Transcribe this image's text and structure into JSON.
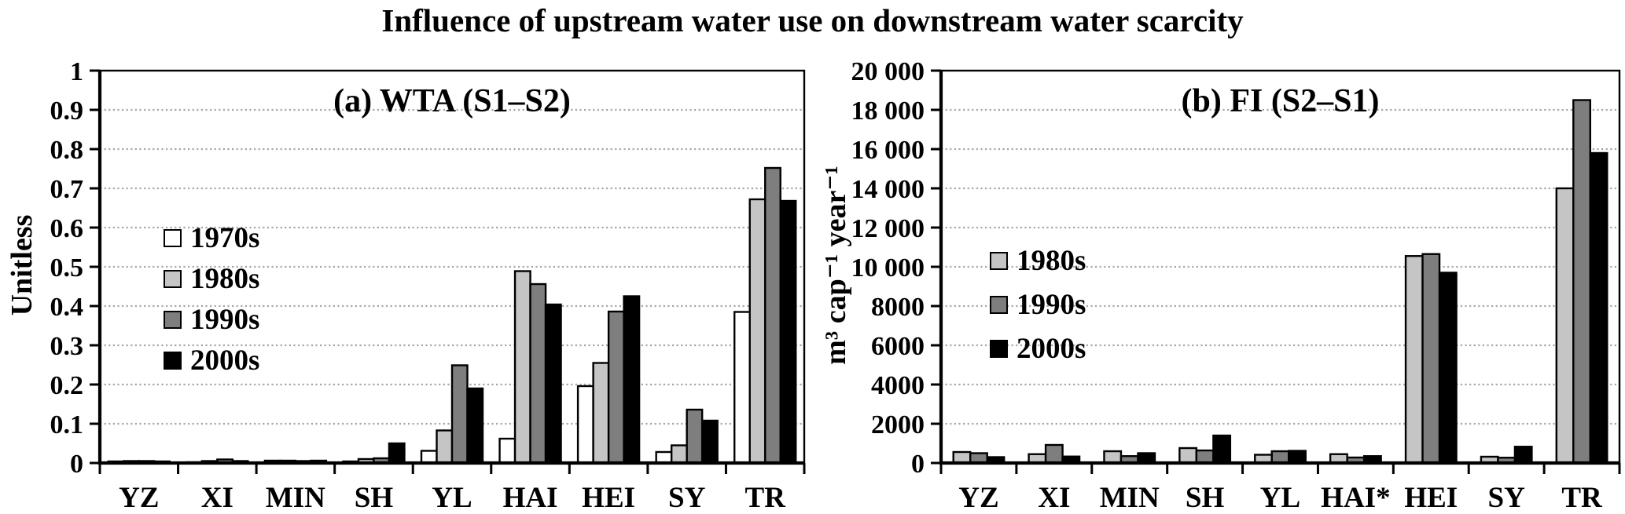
{
  "title": "Influence of upstream water use on downstream water scarcity",
  "chart_data": [
    {
      "type": "bar",
      "panel_label": "(a) WTA (S1–S2)",
      "ylabel": "Unitless",
      "xlabel": "",
      "ylim": [
        0,
        1
      ],
      "ytick_labels": [
        "0",
        "0.1",
        "0.2",
        "0.3",
        "0.4",
        "0.5",
        "0.6",
        "0.7",
        "0.8",
        "0.9",
        "1"
      ],
      "grid": "horizontal-dotted",
      "legend_position": "inside-upper-left",
      "categories": [
        "YZ",
        "XI",
        "MIN",
        "SH",
        "YL",
        "HAI",
        "HEI",
        "SY",
        "TR"
      ],
      "series": [
        {
          "name": "1970s",
          "color": "#ffffff",
          "values": [
            0.004,
            0.002,
            0.006,
            0.004,
            0.031,
            0.062,
            0.196,
            0.028,
            0.385
          ]
        },
        {
          "name": "1980s",
          "color": "#c5c5c5",
          "values": [
            0.005,
            0.005,
            0.006,
            0.01,
            0.083,
            0.489,
            0.255,
            0.045,
            0.672
          ]
        },
        {
          "name": "1990s",
          "color": "#7e7e7e",
          "values": [
            0.005,
            0.009,
            0.005,
            0.012,
            0.249,
            0.456,
            0.386,
            0.136,
            0.752
          ]
        },
        {
          "name": "2000s",
          "color": "#000000",
          "values": [
            0.004,
            0.005,
            0.006,
            0.05,
            0.19,
            0.404,
            0.425,
            0.108,
            0.668
          ]
        }
      ]
    },
    {
      "type": "bar",
      "panel_label": "(b) FI (S2–S1)",
      "ylabel": "m³ cap⁻¹ year⁻¹",
      "xlabel": "",
      "ylim": [
        0,
        20000
      ],
      "ytick_labels": [
        "0",
        "2000",
        "4000",
        "6000",
        "8000",
        "10 000",
        "12 000",
        "14 000",
        "16 000",
        "18 000",
        "20 000"
      ],
      "grid": "horizontal-dotted",
      "legend_position": "inside-upper-left",
      "categories": [
        "YZ",
        "XI",
        "MIN",
        "SH",
        "YL",
        "HAI*",
        "HEI",
        "SY",
        "TR"
      ],
      "series": [
        {
          "name": "1980s",
          "color": "#c5c5c5",
          "values": [
            560,
            450,
            600,
            760,
            420,
            450,
            10550,
            320,
            14000
          ]
        },
        {
          "name": "1990s",
          "color": "#7e7e7e",
          "values": [
            500,
            920,
            350,
            640,
            600,
            280,
            10650,
            270,
            18500
          ]
        },
        {
          "name": "2000s",
          "color": "#000000",
          "values": [
            300,
            330,
            500,
            1400,
            620,
            350,
            9700,
            830,
            15800
          ]
        }
      ]
    }
  ],
  "style": {
    "grid_color": "#a6a6a6",
    "axis_color": "#000000",
    "background": "#ffffff"
  }
}
